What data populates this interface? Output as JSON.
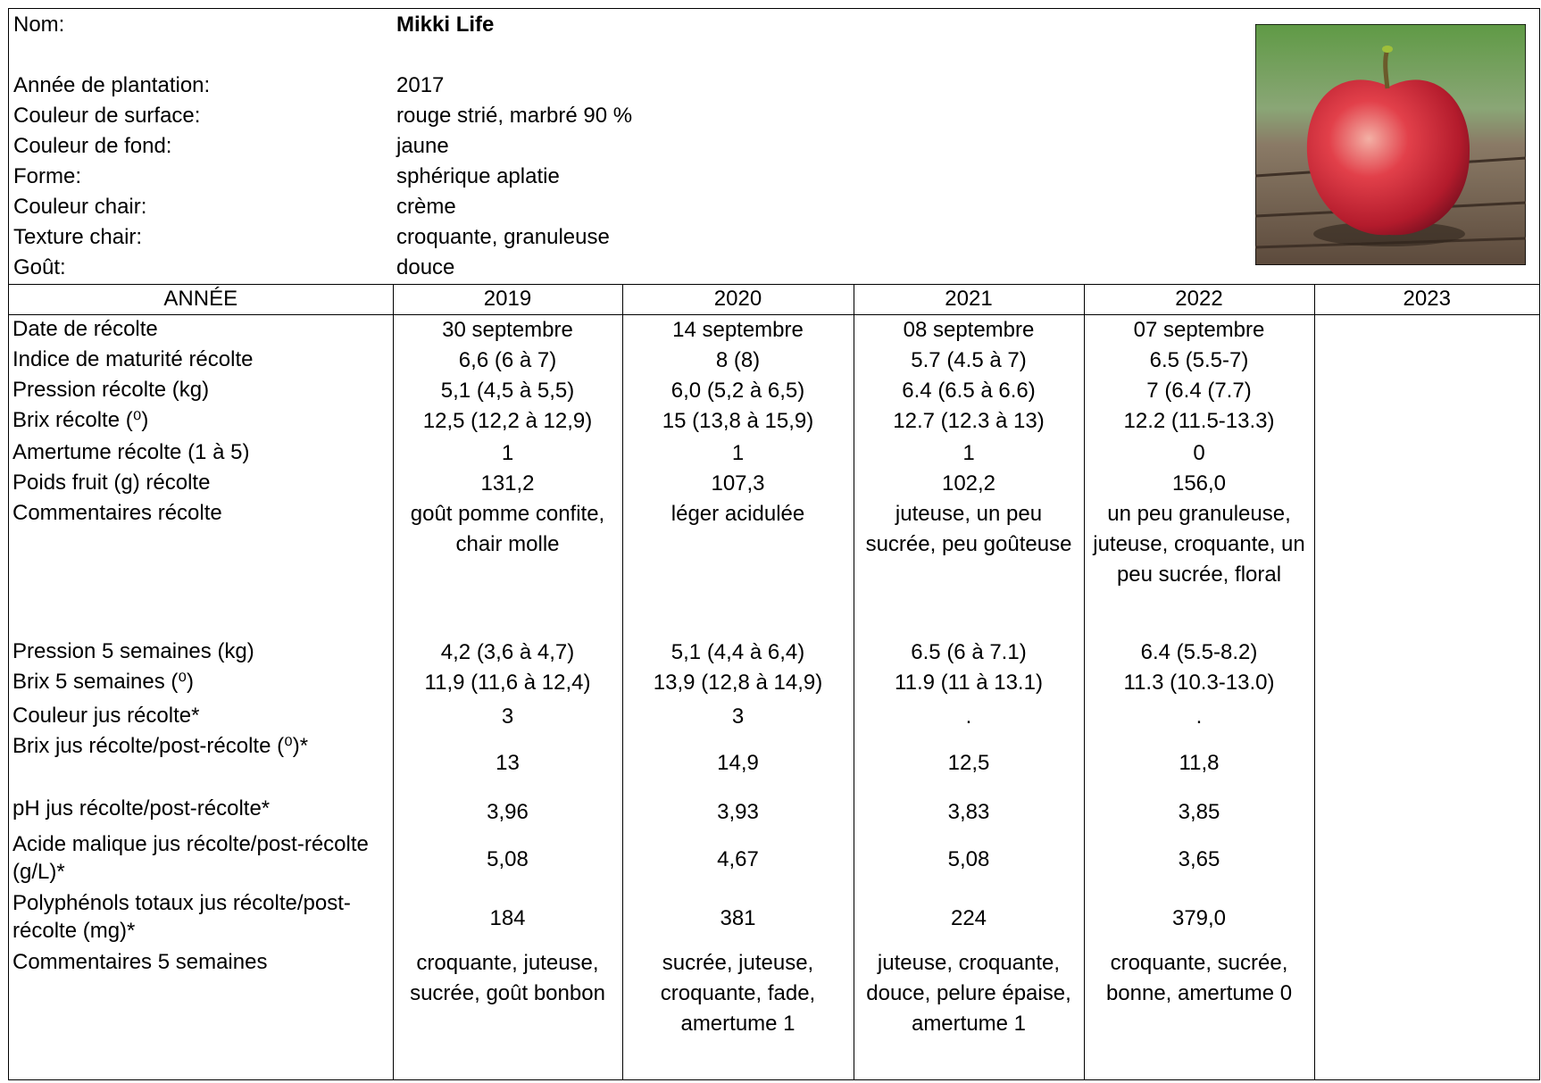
{
  "header": {
    "fields": [
      {
        "label": "Nom:",
        "value": "Mikki Life"
      },
      {
        "label": "Année de plantation:",
        "value": "2017"
      },
      {
        "label": "Couleur de surface:",
        "value": "rouge strié, marbré 90 %"
      },
      {
        "label": "Couleur de fond:",
        "value": "jaune"
      },
      {
        "label": "Forme:",
        "value": "sphérique aplatie"
      },
      {
        "label": "Couleur chair:",
        "value": "crème"
      },
      {
        "label": "Texture chair:",
        "value": "croquante, granuleuse"
      },
      {
        "label": "Goût:",
        "value": "douce"
      }
    ]
  },
  "table": {
    "columns": [
      "ANNÉE",
      "2019",
      "2020",
      "2021",
      "2022",
      "2023"
    ],
    "rows": [
      {
        "label": "Date de récolte",
        "values": [
          "30 septembre",
          "14 septembre",
          "08 septembre",
          "07 septembre"
        ]
      },
      {
        "label": "Indice de maturité récolte",
        "values": [
          "6,6 (6 à 7)",
          "8 (8)",
          "5.7 (4.5 à 7)",
          "6.5 (5.5-7)"
        ]
      },
      {
        "label": "Pression récolte (kg)",
        "values": [
          "5,1 (4,5 à 5,5)",
          "6,0 (5,2 à 6,5)",
          "6.4 (6.5 à 6.6)",
          "7 (6.4 (7.7)"
        ]
      },
      {
        "label": "Brix récolte (⁰)",
        "values": [
          "12,5 (12,2 à 12,9)",
          "15 (13,8 à 15,9)",
          "12.7 (12.3 à 13)",
          "12.2 (11.5-13.3)"
        ]
      },
      {
        "label": "Amertume récolte (1 à 5)",
        "values": [
          "1",
          "1",
          "1",
          "0"
        ]
      },
      {
        "label": "Poids fruit (g) récolte",
        "values": [
          "131,2",
          "107,3",
          "102,2",
          "156,0"
        ]
      },
      {
        "label": "Commentaires récolte",
        "values": [
          "goût pomme confite, chair molle",
          "léger acidulée",
          "juteuse, un peu sucrée, peu goûteuse",
          "un peu granuleuse, juteuse, croquante, un peu sucrée, floral"
        ]
      },
      {
        "label": "Pression 5 semaines (kg)",
        "values": [
          "4,2 (3,6 à 4,7)",
          "5,1 (4,4 à 6,4)",
          "6.5 (6 à 7.1)",
          "6.4 (5.5-8.2)"
        ]
      },
      {
        "label": "Brix 5 semaines (⁰)",
        "values": [
          "11,9 (11,6 à 12,4)",
          "13,9 (12,8 à 14,9)",
          "11.9 (11 à 13.1)",
          "11.3 (10.3-13.0)"
        ]
      },
      {
        "label": "Couleur jus récolte*",
        "values": [
          "3",
          "3",
          ".",
          "."
        ]
      },
      {
        "label": "Brix jus récolte/post-récolte (⁰)*",
        "values": [
          "13",
          "14,9",
          "12,5",
          "11,8"
        ]
      },
      {
        "label": "pH jus récolte/post-récolte*",
        "values": [
          "3,96",
          "3,93",
          "3,83",
          "3,85"
        ]
      },
      {
        "label": "Acide malique jus récolte/post-récolte (g/L)*",
        "values": [
          "5,08",
          "4,67",
          "5,08",
          "3,65"
        ]
      },
      {
        "label": "Polyphénols totaux jus récolte/post-récolte (mg)*",
        "values": [
          "184",
          "381",
          "224",
          "379,0"
        ]
      },
      {
        "label": "Commentaires 5 semaines",
        "values": [
          "croquante, juteuse, sucrée, goût bonbon",
          "sucrée, juteuse, croquante, fade, amertume 1",
          "juteuse, croquante, douce, pelure épaise, amertume 1",
          "croquante, sucrée, bonne, amertume 0"
        ]
      }
    ]
  }
}
